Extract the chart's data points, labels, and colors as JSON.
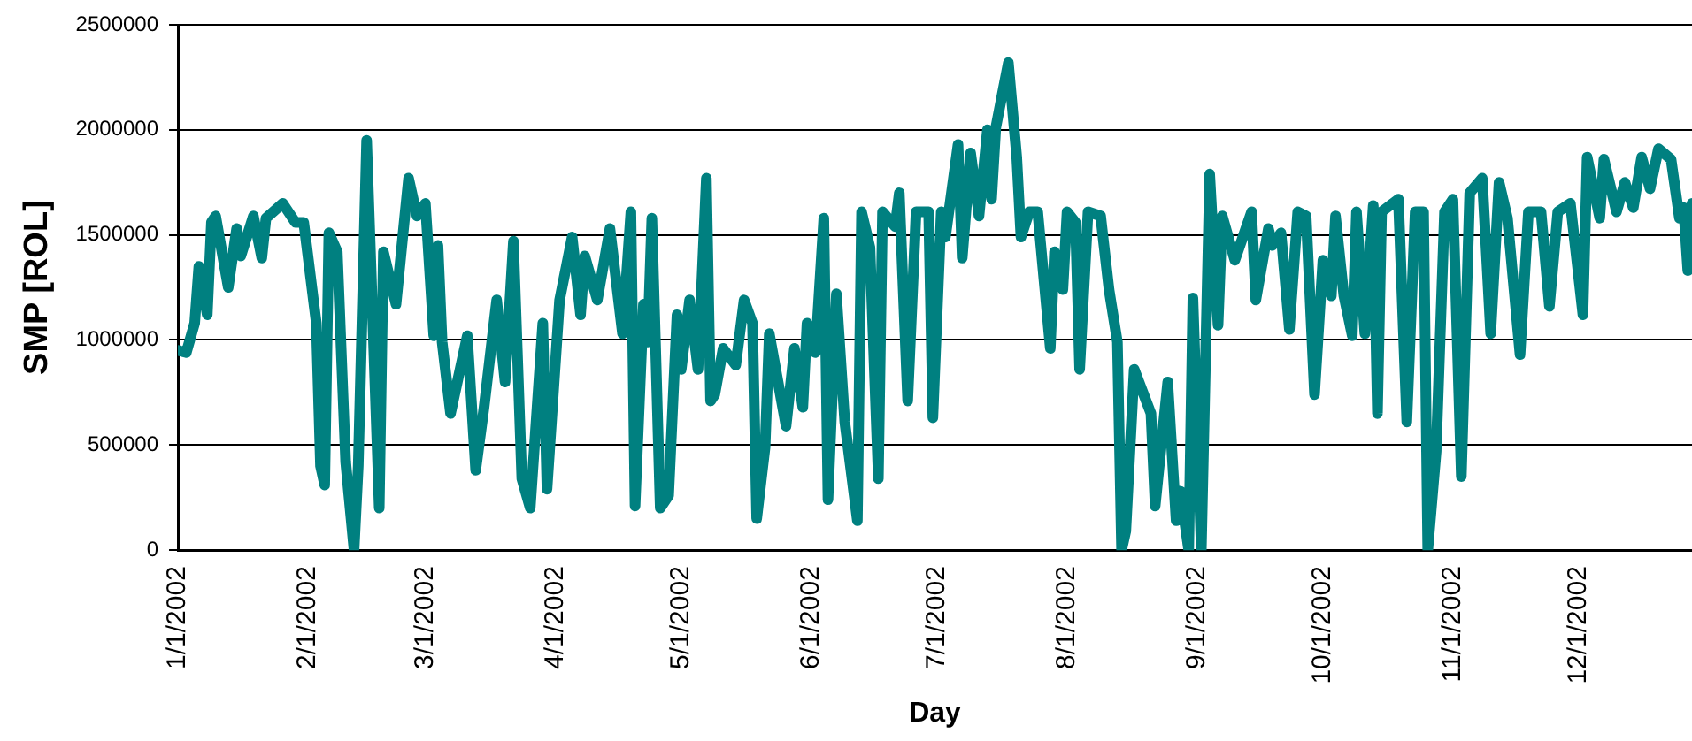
{
  "chart_data": {
    "type": "line",
    "xlabel": "Day",
    "ylabel": "SMP [ROL]",
    "grid": "y",
    "xlim": [
      "2002-01-01",
      "2002-12-28"
    ],
    "xticks": [
      {
        "value": "2002-01-01",
        "label": "1/1/2002"
      },
      {
        "value": "2002-02-01",
        "label": "2/1/2002"
      },
      {
        "value": "2002-03-01",
        "label": "3/1/2002"
      },
      {
        "value": "2002-04-01",
        "label": "4/1/2002"
      },
      {
        "value": "2002-05-01",
        "label": "5/1/2002"
      },
      {
        "value": "2002-06-01",
        "label": "6/1/2002"
      },
      {
        "value": "2002-07-01",
        "label": "7/1/2002"
      },
      {
        "value": "2002-08-01",
        "label": "8/1/2002"
      },
      {
        "value": "2002-09-01",
        "label": "9/1/2002"
      },
      {
        "value": "2002-10-01",
        "label": "10/1/2002"
      },
      {
        "value": "2002-11-01",
        "label": "11/1/2002"
      },
      {
        "value": "2002-12-01",
        "label": "12/1/2002"
      }
    ],
    "ylim": [
      0,
      2500000
    ],
    "yticks": [
      0,
      500000,
      1000000,
      1500000,
      2000000,
      2500000
    ],
    "series": [
      {
        "color": "#008080",
        "x": [
          "2002-01-01",
          "2002-01-03",
          "2002-01-05",
          "2002-01-06",
          "2002-01-08",
          "2002-01-09",
          "2002-01-10",
          "2002-01-13",
          "2002-01-15",
          "2002-01-16",
          "2002-01-19",
          "2002-01-21",
          "2002-01-22",
          "2002-01-26",
          "2002-01-29",
          "2002-01-31",
          "2002-02-03",
          "2002-02-04",
          "2002-02-05",
          "2002-02-06",
          "2002-02-08",
          "2002-02-10",
          "2002-02-12",
          "2002-02-13",
          "2002-02-15",
          "2002-02-18",
          "2002-02-19",
          "2002-02-22",
          "2002-02-25",
          "2002-02-27",
          "2002-03-01",
          "2002-03-03",
          "2002-03-04",
          "2002-03-05",
          "2002-03-07",
          "2002-03-11",
          "2002-03-13",
          "2002-03-15",
          "2002-03-18",
          "2002-03-20",
          "2002-03-22",
          "2002-03-24",
          "2002-03-26",
          "2002-03-29",
          "2002-03-30",
          "2002-04-02",
          "2002-04-05",
          "2002-04-07",
          "2002-04-08",
          "2002-04-11",
          "2002-04-14",
          "2002-04-17",
          "2002-04-19",
          "2002-04-20",
          "2002-04-22",
          "2002-04-23",
          "2002-04-24",
          "2002-04-26",
          "2002-04-28",
          "2002-04-30",
          "2002-05-01",
          "2002-05-03",
          "2002-05-05",
          "2002-05-07",
          "2002-05-08",
          "2002-05-09",
          "2002-05-11",
          "2002-05-14",
          "2002-05-16",
          "2002-05-18",
          "2002-05-19",
          "2002-05-21",
          "2002-05-22",
          "2002-05-26",
          "2002-05-28",
          "2002-05-30",
          "2002-05-31",
          "2002-06-02",
          "2002-06-04",
          "2002-06-05",
          "2002-06-07",
          "2002-06-09",
          "2002-06-12",
          "2002-06-13",
          "2002-06-15",
          "2002-06-17",
          "2002-06-18",
          "2002-06-21",
          "2002-06-22",
          "2002-06-24",
          "2002-06-26",
          "2002-06-29",
          "2002-06-30",
          "2002-07-02",
          "2002-07-03",
          "2002-07-06",
          "2002-07-07",
          "2002-07-09",
          "2002-07-11",
          "2002-07-13",
          "2002-07-14",
          "2002-07-15",
          "2002-07-18",
          "2002-07-20",
          "2002-07-21",
          "2002-07-23",
          "2002-07-25",
          "2002-07-28",
          "2002-07-29",
          "2002-07-31",
          "2002-08-01",
          "2002-08-03",
          "2002-08-04",
          "2002-08-06",
          "2002-08-09",
          "2002-08-11",
          "2002-08-13",
          "2002-08-14",
          "2002-08-15",
          "2002-08-17",
          "2002-08-21",
          "2002-08-22",
          "2002-08-25",
          "2002-08-27",
          "2002-08-28",
          "2002-08-30",
          "2002-08-31",
          "2002-09-02",
          "2002-09-04",
          "2002-09-06",
          "2002-09-07",
          "2002-09-10",
          "2002-09-14",
          "2002-09-15",
          "2002-09-18",
          "2002-09-19",
          "2002-09-21",
          "2002-09-23",
          "2002-09-25",
          "2002-09-27",
          "2002-09-29",
          "2002-10-01",
          "2002-10-03",
          "2002-10-04",
          "2002-10-06",
          "2002-10-08",
          "2002-10-09",
          "2002-10-11",
          "2002-10-13",
          "2002-10-14",
          "2002-10-15",
          "2002-10-19",
          "2002-10-21",
          "2002-10-23",
          "2002-10-25",
          "2002-10-26",
          "2002-10-28",
          "2002-10-30",
          "2002-11-01",
          "2002-11-03",
          "2002-11-05",
          "2002-11-08",
          "2002-11-10",
          "2002-11-12",
          "2002-11-14",
          "2002-11-17",
          "2002-11-19",
          "2002-11-22",
          "2002-11-24",
          "2002-11-26",
          "2002-11-29",
          "2002-12-02",
          "2002-12-03",
          "2002-12-06",
          "2002-12-07",
          "2002-12-10",
          "2002-12-12",
          "2002-12-14",
          "2002-12-16",
          "2002-12-18",
          "2002-12-20",
          "2002-12-23",
          "2002-12-25",
          "2002-12-26",
          "2002-12-27",
          "2002-12-28"
        ],
        "values": [
          950000,
          940000,
          1080000,
          1350000,
          1120000,
          1560000,
          1590000,
          1250000,
          1530000,
          1400000,
          1590000,
          1390000,
          1580000,
          1650000,
          1560000,
          1560000,
          1080000,
          400000,
          310000,
          1510000,
          1420000,
          420000,
          0,
          400000,
          1950000,
          200000,
          1420000,
          1170000,
          1770000,
          1590000,
          1650000,
          1020000,
          1450000,
          990000,
          650000,
          1020000,
          380000,
          680000,
          1190000,
          800000,
          1470000,
          340000,
          200000,
          1080000,
          290000,
          1190000,
          1490000,
          1120000,
          1400000,
          1190000,
          1530000,
          1030000,
          1610000,
          210000,
          1170000,
          990000,
          1580000,
          200000,
          260000,
          1120000,
          860000,
          1190000,
          860000,
          1770000,
          710000,
          740000,
          960000,
          880000,
          1190000,
          1080000,
          150000,
          490000,
          1030000,
          590000,
          960000,
          680000,
          1080000,
          940000,
          1580000,
          240000,
          1220000,
          610000,
          140000,
          1610000,
          1440000,
          340000,
          1610000,
          1540000,
          1700000,
          710000,
          1610000,
          1610000,
          630000,
          1610000,
          1490000,
          1930000,
          1390000,
          1890000,
          1590000,
          2000000,
          1670000,
          2010000,
          2320000,
          1870000,
          1490000,
          1610000,
          1610000,
          960000,
          1420000,
          1240000,
          1610000,
          1560000,
          860000,
          1610000,
          1590000,
          1240000,
          990000,
          0,
          90000,
          860000,
          650000,
          210000,
          800000,
          140000,
          280000,
          0,
          1200000,
          0,
          1790000,
          1070000,
          1590000,
          1380000,
          1610000,
          1190000,
          1530000,
          1450000,
          1510000,
          1050000,
          1610000,
          1590000,
          740000,
          1380000,
          1210000,
          1590000,
          1210000,
          1020000,
          1610000,
          1030000,
          1640000,
          650000,
          1610000,
          1670000,
          610000,
          1610000,
          1610000,
          0,
          470000,
          1610000,
          1670000,
          350000,
          1700000,
          1770000,
          1030000,
          1750000,
          1580000,
          930000,
          1610000,
          1610000,
          1160000,
          1610000,
          1650000,
          1120000,
          1870000,
          1580000,
          1860000,
          1610000,
          1750000,
          1630000,
          1870000,
          1720000,
          1910000,
          1860000,
          1580000,
          1630000,
          1330000,
          1650000
        ]
      }
    ]
  }
}
